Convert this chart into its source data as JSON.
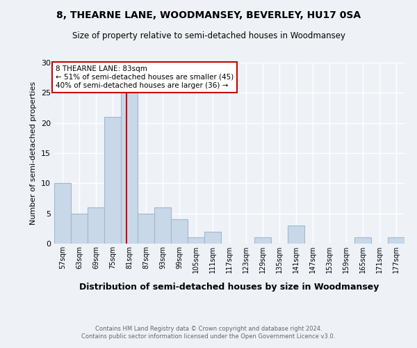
{
  "title": "8, THEARNE LANE, WOODMANSEY, BEVERLEY, HU17 0SA",
  "subtitle": "Size of property relative to semi-detached houses in Woodmansey",
  "xlabel": "Distribution of semi-detached houses by size in Woodmansey",
  "ylabel": "Number of semi-detached properties",
  "bin_labels": [
    "57sqm",
    "63sqm",
    "69sqm",
    "75sqm",
    "81sqm",
    "87sqm",
    "93sqm",
    "99sqm",
    "105sqm",
    "111sqm",
    "117sqm",
    "123sqm",
    "129sqm",
    "135sqm",
    "141sqm",
    "147sqm",
    "153sqm",
    "159sqm",
    "165sqm",
    "171sqm",
    "177sqm"
  ],
  "bin_edges": [
    57,
    63,
    69,
    75,
    81,
    87,
    93,
    99,
    105,
    111,
    117,
    123,
    129,
    135,
    141,
    147,
    153,
    159,
    165,
    171,
    177,
    183
  ],
  "bar_heights": [
    10,
    5,
    6,
    21,
    25,
    5,
    6,
    4,
    1,
    2,
    0,
    0,
    1,
    0,
    3,
    0,
    0,
    0,
    1,
    0,
    1
  ],
  "bar_color": "#c8d8e8",
  "bar_edgecolor": "#a0b8cc",
  "highlight_value": 83,
  "highlight_line_color": "#cc0000",
  "annotation_text": "8 THEARNE LANE: 83sqm\n← 51% of semi-detached houses are smaller (45)\n40% of semi-detached houses are larger (36) →",
  "annotation_box_color": "#ffffff",
  "annotation_box_edgecolor": "#cc0000",
  "ylim": [
    0,
    30
  ],
  "yticks": [
    0,
    5,
    10,
    15,
    20,
    25,
    30
  ],
  "background_color": "#eef2f7",
  "grid_color": "#ffffff",
  "footer_line1": "Contains HM Land Registry data © Crown copyright and database right 2024.",
  "footer_line2": "Contains public sector information licensed under the Open Government Licence v3.0."
}
